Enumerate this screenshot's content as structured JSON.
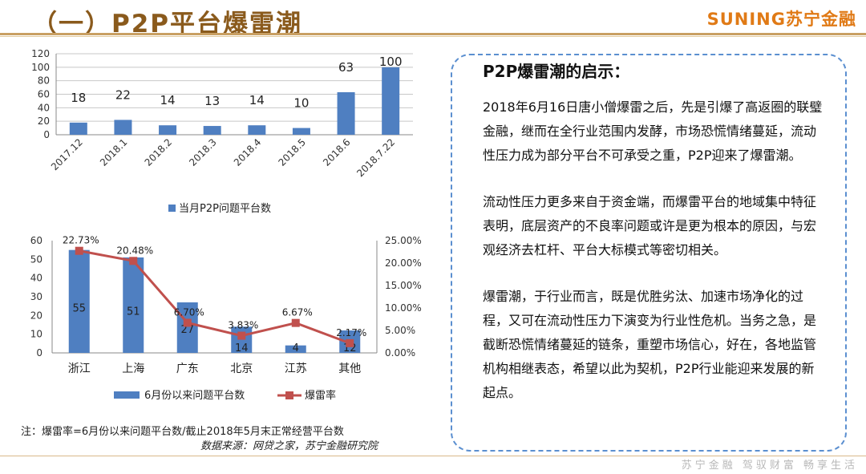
{
  "header": {
    "title": "（一）P2P平台爆雷潮",
    "brand": "SUNING苏宁金融"
  },
  "footer": {
    "slogan": "苏宁金融 驾驭财富 畅享生活"
  },
  "note": "注：爆雷率=6月份以来问题平台数/截止2018年5月末正常经营平台数",
  "source": "数据来源：网贷之家，苏宁金融研究院",
  "panel": {
    "title": "P2P爆雷潮的启示：",
    "paragraphs": [
      "2018年6月16日唐小僧爆雷之后，先是引爆了高返圈的联璧金融，继而在全行业范围内发酵，市场恐慌情绪蔓延，流动性压力成为部分平台不可承受之重，P2P迎来了爆雷潮。",
      "流动性压力更多来自于资金端，而爆雷平台的地域集中特征表明，底层资产的不良率问题或许是更为根本的原因，与宏观经济去杠杆、平台大标模式等密切相关。",
      "爆雷潮，于行业而言，既是优胜劣汰、加速市场净化的过程，又可在流动性压力下演变为行业性危机。当务之急，是截断恐慌情绪蔓延的链条，重塑市场信心，好在，各地监管机构相继表态，希望以此为契机，P2P行业能迎来发展的新起点。"
    ]
  },
  "chart_data": [
    {
      "type": "bar",
      "categories": [
        "2017.12",
        "2018.1",
        "2018.2",
        "2018.3",
        "2018.4",
        "2018.5",
        "2018.6",
        "2018.7.22"
      ],
      "series": [
        {
          "name": "当月P2P问题平台数",
          "values": [
            18,
            22,
            14,
            13,
            14,
            10,
            63,
            100
          ],
          "color": "#4f7fc1"
        }
      ],
      "ylim": [
        0,
        120
      ],
      "yticks": [
        0,
        20,
        40,
        60,
        80,
        100,
        120
      ],
      "grid": true,
      "legend": "bottom"
    },
    {
      "type": "bar+line",
      "categories": [
        "浙江",
        "上海",
        "广东",
        "北京",
        "江苏",
        "其他"
      ],
      "bars": {
        "name": "6月份以来问题平台数",
        "values": [
          55,
          51,
          27,
          14,
          4,
          12
        ],
        "color": "#4f7fc1"
      },
      "line": {
        "name": "爆雷率",
        "values": [
          22.73,
          20.48,
          6.7,
          3.83,
          6.67,
          2.17
        ],
        "labels": [
          "22.73%",
          "20.48%",
          "6.70%",
          "3.83%",
          "6.67%",
          "2.17%"
        ],
        "color": "#c0504d"
      },
      "ylim": [
        0,
        60
      ],
      "yticks": [
        0,
        10,
        20,
        30,
        40,
        50,
        60
      ],
      "y2lim": [
        0,
        25
      ],
      "y2ticks": [
        "0.00%",
        "5.00%",
        "10.00%",
        "15.00%",
        "20.00%",
        "25.00%"
      ],
      "legend": "bottom"
    }
  ]
}
